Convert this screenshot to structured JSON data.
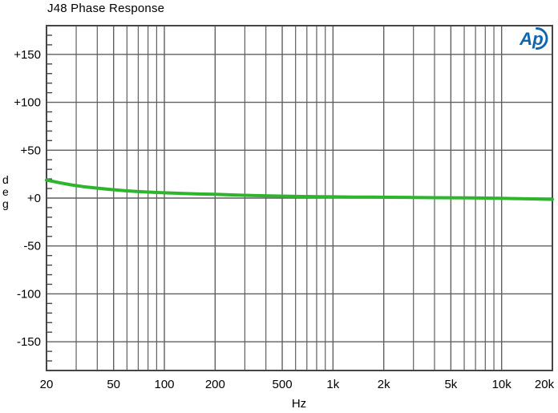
{
  "colors": {
    "line": "#2db52d",
    "grid": "#5f5f5f",
    "frame": "#454545",
    "text": "#000000",
    "logo": "#1066ad",
    "background": "#ffffff"
  },
  "logo": {
    "text": "Ap"
  },
  "chart_data": {
    "type": "line",
    "title": "J48 Phase Response",
    "xlabel": "Hz",
    "ylabel": "deg",
    "ylabel_vertical": [
      "d",
      "e",
      "g"
    ],
    "x_scale": "log",
    "xlim": [
      20,
      20000
    ],
    "ylim": [
      -180,
      180
    ],
    "grid": true,
    "legend": "none",
    "x_ticks": [
      {
        "f": 20,
        "label": "20"
      },
      {
        "f": 50,
        "label": "50"
      },
      {
        "f": 100,
        "label": "100"
      },
      {
        "f": 200,
        "label": "200"
      },
      {
        "f": 500,
        "label": "500"
      },
      {
        "f": 1000,
        "label": "1k"
      },
      {
        "f": 2000,
        "label": "2k"
      },
      {
        "f": 5000,
        "label": "5k"
      },
      {
        "f": 10000,
        "label": "10k"
      },
      {
        "f": 20000,
        "label": "20k"
      }
    ],
    "x_minor_gridlines": [
      30,
      40,
      60,
      70,
      80,
      90,
      300,
      400,
      600,
      700,
      800,
      900,
      3000,
      4000,
      6000,
      7000,
      8000,
      9000
    ],
    "y_ticks": [
      {
        "v": 150,
        "label": "+150"
      },
      {
        "v": 100,
        "label": "+100"
      },
      {
        "v": 50,
        "label": "+50"
      },
      {
        "v": 0,
        "label": "+0"
      },
      {
        "v": -50,
        "label": "-50"
      },
      {
        "v": -100,
        "label": "-100"
      },
      {
        "v": -150,
        "label": "-150"
      }
    ],
    "y_minor_tick_step": 10,
    "series": [
      {
        "name": "J48 phase",
        "color": "#2db52d",
        "points": [
          [
            20,
            18.8
          ],
          [
            24,
            16.0
          ],
          [
            28,
            13.8
          ],
          [
            33,
            12.0
          ],
          [
            40,
            10.4
          ],
          [
            48,
            9.0
          ],
          [
            58,
            7.8
          ],
          [
            70,
            6.8
          ],
          [
            85,
            6.0
          ],
          [
            100,
            5.5
          ],
          [
            130,
            4.8
          ],
          [
            160,
            4.3
          ],
          [
            200,
            3.9
          ],
          [
            260,
            3.3
          ],
          [
            330,
            2.8
          ],
          [
            420,
            2.3
          ],
          [
            520,
            2.0
          ],
          [
            650,
            1.7
          ],
          [
            800,
            1.5
          ],
          [
            1000,
            1.3
          ],
          [
            1300,
            1.1
          ],
          [
            1700,
            1.0
          ],
          [
            2200,
            0.85
          ],
          [
            3000,
            0.65
          ],
          [
            4000,
            0.45
          ],
          [
            5000,
            0.3
          ],
          [
            6500,
            0.15
          ],
          [
            8000,
            0.0
          ],
          [
            10000,
            -0.25
          ],
          [
            13000,
            -0.55
          ],
          [
            16000,
            -0.9
          ],
          [
            20000,
            -1.3
          ]
        ]
      }
    ]
  }
}
